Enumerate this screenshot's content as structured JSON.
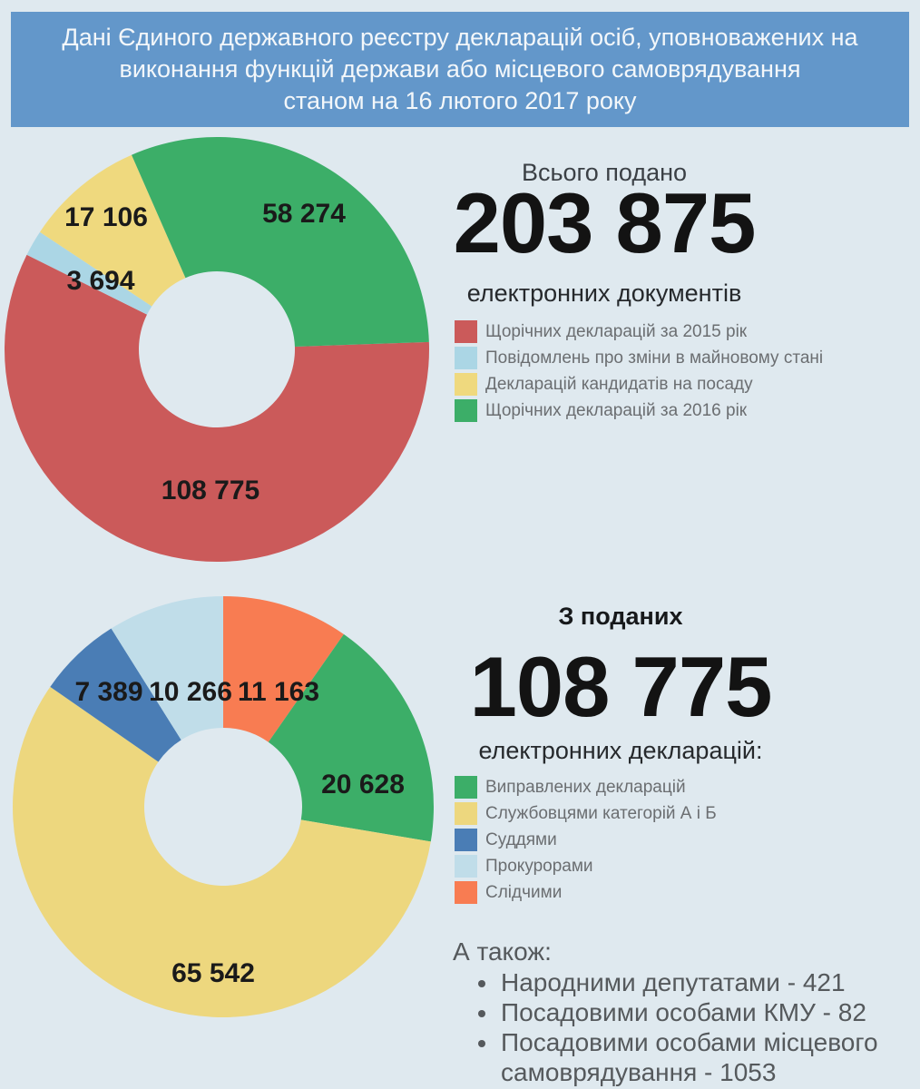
{
  "header": {
    "lines": [
      "Дані Єдиного державного реєстру декларацій осіб, уповноважених на",
      "виконання функцій держави або місцевого самоврядування",
      "станом на 16 лютого 2017 року"
    ],
    "background_color": "#6397CA"
  },
  "page_background_color": "#DFE9EF",
  "chart_data": [
    {
      "type": "donut",
      "title": "Всього подано",
      "total_formatted": "203 875",
      "total_value": 203875,
      "subtitle": "електронних документів",
      "legend_position": "right",
      "slices": [
        {
          "label": "Щорічних декларацій за 2015 рік",
          "value": 108775,
          "value_formatted": "108 775",
          "color": "#CB5A5A"
        },
        {
          "label": "Повідомлень про зміни в майновому стані",
          "value": 3694,
          "value_formatted": "3 694",
          "color": "#ABD6E5"
        },
        {
          "label": "Декларацій кандидатів на посаду",
          "value": 17106,
          "value_formatted": "17 106",
          "color": "#EFD97E"
        },
        {
          "label": "Щорічних декларацій за 2016 рік",
          "value": 58274,
          "value_formatted": "58 274",
          "color": "#3CAE68"
        }
      ]
    },
    {
      "type": "donut",
      "title": "З поданих",
      "total_formatted": "108 775",
      "total_value": 108775,
      "subtitle": "електронних декларацій:",
      "legend_position": "right",
      "slices": [
        {
          "label": "Виправлених декларацій",
          "value": 20628,
          "value_formatted": "20 628",
          "color": "#3CAE68"
        },
        {
          "label": "Службовцями категорій А і Б",
          "value": 65542,
          "value_formatted": "65 542",
          "color": "#EDD77E"
        },
        {
          "label": "Суддями",
          "value": 7389,
          "value_formatted": "7 389",
          "color": "#4A7DB5"
        },
        {
          "label": "Прокурорами",
          "value": 10266,
          "value_formatted": "10 266",
          "color": "#C0DDE9"
        },
        {
          "label": "Слідчими",
          "value": 11163,
          "value_formatted": "11 163",
          "color": "#F87C52"
        }
      ]
    }
  ],
  "also": {
    "heading": "А також:",
    "items": [
      "Народними депутатами - 421",
      "Посадовими особами КМУ - 82",
      "Посадовими особами місцевого самоврядування - 1053"
    ]
  }
}
